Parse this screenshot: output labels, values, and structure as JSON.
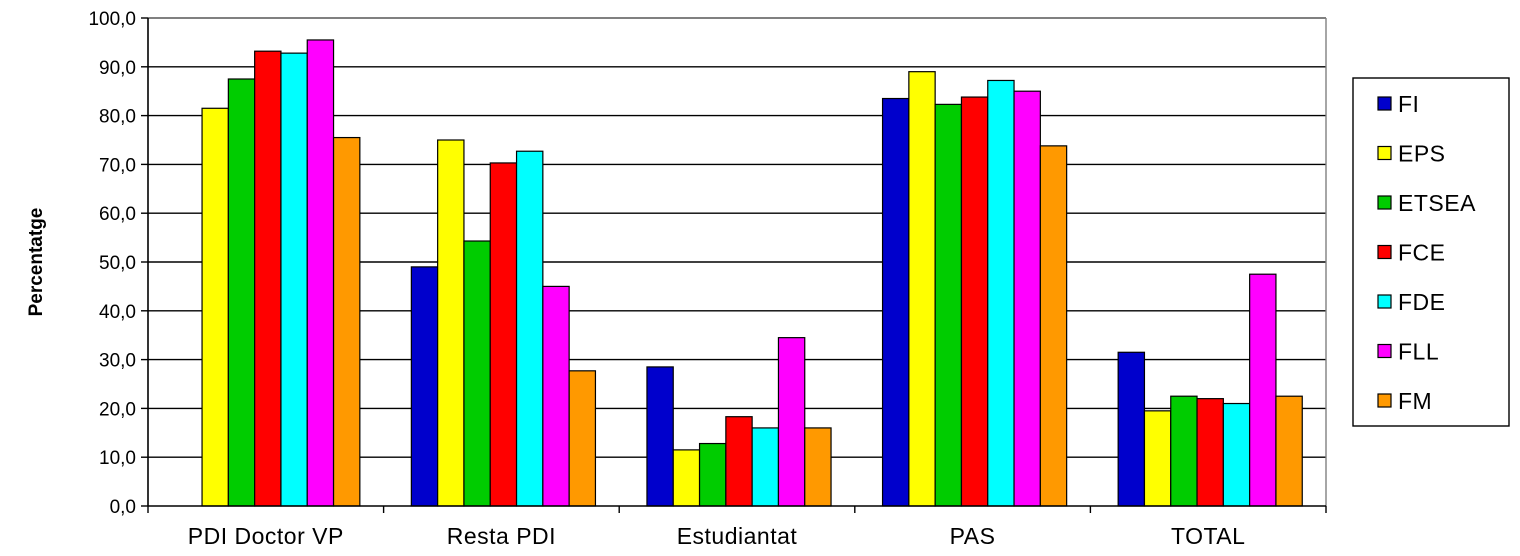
{
  "chart_data": {
    "type": "bar",
    "title": "",
    "xlabel": "",
    "ylabel": "Percentatge",
    "ylim": [
      0,
      100
    ],
    "ytick_step": 10,
    "ytick_labels": [
      "0,0",
      "10,0",
      "20,0",
      "30,0",
      "40,0",
      "50,0",
      "60,0",
      "70,0",
      "80,0",
      "90,0",
      "100,0"
    ],
    "grid": true,
    "legend_position": "right",
    "categories": [
      "PDI Doctor VP",
      "Resta PDI",
      "Estudiantat",
      "PAS",
      "TOTAL"
    ],
    "series": [
      {
        "name": "FI",
        "color": "#0000CC",
        "values": [
          null,
          49.0,
          28.5,
          83.5,
          31.5
        ]
      },
      {
        "name": "EPS",
        "color": "#FFFF00",
        "values": [
          81.5,
          75.0,
          11.5,
          89.0,
          19.5
        ]
      },
      {
        "name": "ETSEA",
        "color": "#00CC00",
        "values": [
          87.5,
          54.3,
          12.8,
          82.3,
          22.5
        ]
      },
      {
        "name": "FCE",
        "color": "#FF0000",
        "values": [
          93.2,
          70.3,
          18.3,
          83.8,
          22.0
        ]
      },
      {
        "name": "FDE",
        "color": "#00FFFF",
        "values": [
          92.8,
          72.7,
          16.0,
          87.2,
          21.0
        ]
      },
      {
        "name": "FLL",
        "color": "#FF00FF",
        "values": [
          95.5,
          45.0,
          34.5,
          85.0,
          47.5
        ]
      },
      {
        "name": "FM",
        "color": "#FF9900",
        "values": [
          75.5,
          27.7,
          16.0,
          73.8,
          22.5
        ]
      }
    ]
  }
}
